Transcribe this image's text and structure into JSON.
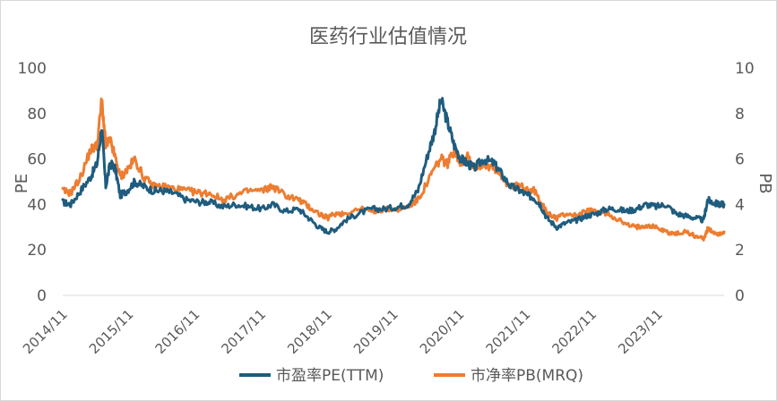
{
  "chart_data": {
    "type": "line",
    "title": "医药行业估值情况",
    "ylabel_left": "PE",
    "ylabel_right": "PB",
    "ylim_left": [
      0,
      100
    ],
    "ylim_right": [
      0,
      10
    ],
    "yticks_left": [
      "0",
      "20",
      "40",
      "60",
      "80",
      "100"
    ],
    "yticks_right": [
      "0",
      "2",
      "4",
      "6",
      "8",
      "10"
    ],
    "x_categories": [
      "2014/11",
      "2015/11",
      "2016/11",
      "2017/11",
      "2018/11",
      "2019/11",
      "2020/11",
      "2021/11",
      "2022/11",
      "2023/11"
    ],
    "x_range": [
      2014.83,
      2024.83
    ],
    "grid": false,
    "legend_position": "bottom",
    "series": [
      {
        "name": "市盈率PE(TTM)",
        "axis": "left",
        "color": "#1F5C7E",
        "x": [
          2014.83,
          2014.95,
          2015.1,
          2015.25,
          2015.35,
          2015.42,
          2015.48,
          2015.55,
          2015.62,
          2015.7,
          2015.8,
          2015.92,
          2016.05,
          2016.2,
          2016.35,
          2016.5,
          2016.7,
          2016.9,
          2017.05,
          2017.25,
          2017.45,
          2017.65,
          2017.85,
          2018.0,
          2018.2,
          2018.4,
          2018.55,
          2018.7,
          2018.83,
          2018.95,
          2019.1,
          2019.3,
          2019.5,
          2019.7,
          2019.9,
          2020.05,
          2020.2,
          2020.35,
          2020.45,
          2020.55,
          2020.65,
          2020.75,
          2020.85,
          2020.95,
          2021.05,
          2021.2,
          2021.35,
          2021.45,
          2021.6,
          2021.75,
          2021.85,
          2021.95,
          2022.05,
          2022.15,
          2022.3,
          2022.45,
          2022.6,
          2022.75,
          2022.9,
          2023.05,
          2023.2,
          2023.35,
          2023.5,
          2023.65,
          2023.8,
          2023.95,
          2024.1,
          2024.25,
          2024.4,
          2024.52,
          2024.58,
          2024.65,
          2024.75,
          2024.83
        ],
        "values": [
          41,
          40,
          46,
          52,
          58,
          74,
          48,
          58,
          56,
          44,
          46,
          50,
          48,
          46,
          46,
          45,
          42,
          41,
          41,
          39,
          40,
          39,
          38,
          40,
          37,
          38,
          34,
          30,
          28,
          29,
          33,
          36,
          38,
          38,
          39,
          40,
          46,
          62,
          72,
          86,
          76,
          66,
          60,
          58,
          56,
          60,
          58,
          54,
          48,
          46,
          44,
          43,
          40,
          34,
          30,
          32,
          33,
          35,
          36,
          38,
          38,
          37,
          38,
          40,
          39,
          40,
          36,
          35,
          34,
          33,
          42,
          41,
          40,
          40
        ]
      },
      {
        "name": "市净率PB(MRQ)",
        "axis": "right",
        "color": "#ED7D31",
        "x": [
          2014.83,
          2014.95,
          2015.1,
          2015.25,
          2015.35,
          2015.42,
          2015.48,
          2015.55,
          2015.62,
          2015.7,
          2015.8,
          2015.92,
          2016.05,
          2016.2,
          2016.35,
          2016.5,
          2016.7,
          2016.9,
          2017.05,
          2017.25,
          2017.45,
          2017.65,
          2017.85,
          2018.0,
          2018.2,
          2018.4,
          2018.55,
          2018.7,
          2018.83,
          2018.95,
          2019.1,
          2019.3,
          2019.5,
          2019.7,
          2019.9,
          2020.05,
          2020.2,
          2020.35,
          2020.45,
          2020.55,
          2020.65,
          2020.75,
          2020.85,
          2020.95,
          2021.05,
          2021.2,
          2021.35,
          2021.45,
          2021.6,
          2021.75,
          2021.85,
          2021.95,
          2022.05,
          2022.15,
          2022.3,
          2022.45,
          2022.6,
          2022.75,
          2022.9,
          2023.05,
          2023.2,
          2023.35,
          2023.5,
          2023.65,
          2023.8,
          2023.95,
          2024.1,
          2024.25,
          2024.4,
          2024.52,
          2024.58,
          2024.65,
          2024.75,
          2024.83
        ],
        "values": [
          4.6,
          4.5,
          5.2,
          6.4,
          6.6,
          8.6,
          6.6,
          6.8,
          6.1,
          5.2,
          5.5,
          6.0,
          5.2,
          4.8,
          4.8,
          4.7,
          4.6,
          4.5,
          4.5,
          4.2,
          4.4,
          4.6,
          4.6,
          4.8,
          4.4,
          4.2,
          3.9,
          3.6,
          3.4,
          3.6,
          3.6,
          3.8,
          3.7,
          3.8,
          3.8,
          3.9,
          4.2,
          5.0,
          5.6,
          6.0,
          5.8,
          6.4,
          5.8,
          6.2,
          5.6,
          5.8,
          5.6,
          5.2,
          4.8,
          4.8,
          4.7,
          4.6,
          4.2,
          3.6,
          3.4,
          3.6,
          3.5,
          3.7,
          3.7,
          3.6,
          3.4,
          3.1,
          3.0,
          3.1,
          3.0,
          2.8,
          2.7,
          2.8,
          2.6,
          2.5,
          2.9,
          2.8,
          2.7,
          2.8
        ]
      }
    ]
  }
}
